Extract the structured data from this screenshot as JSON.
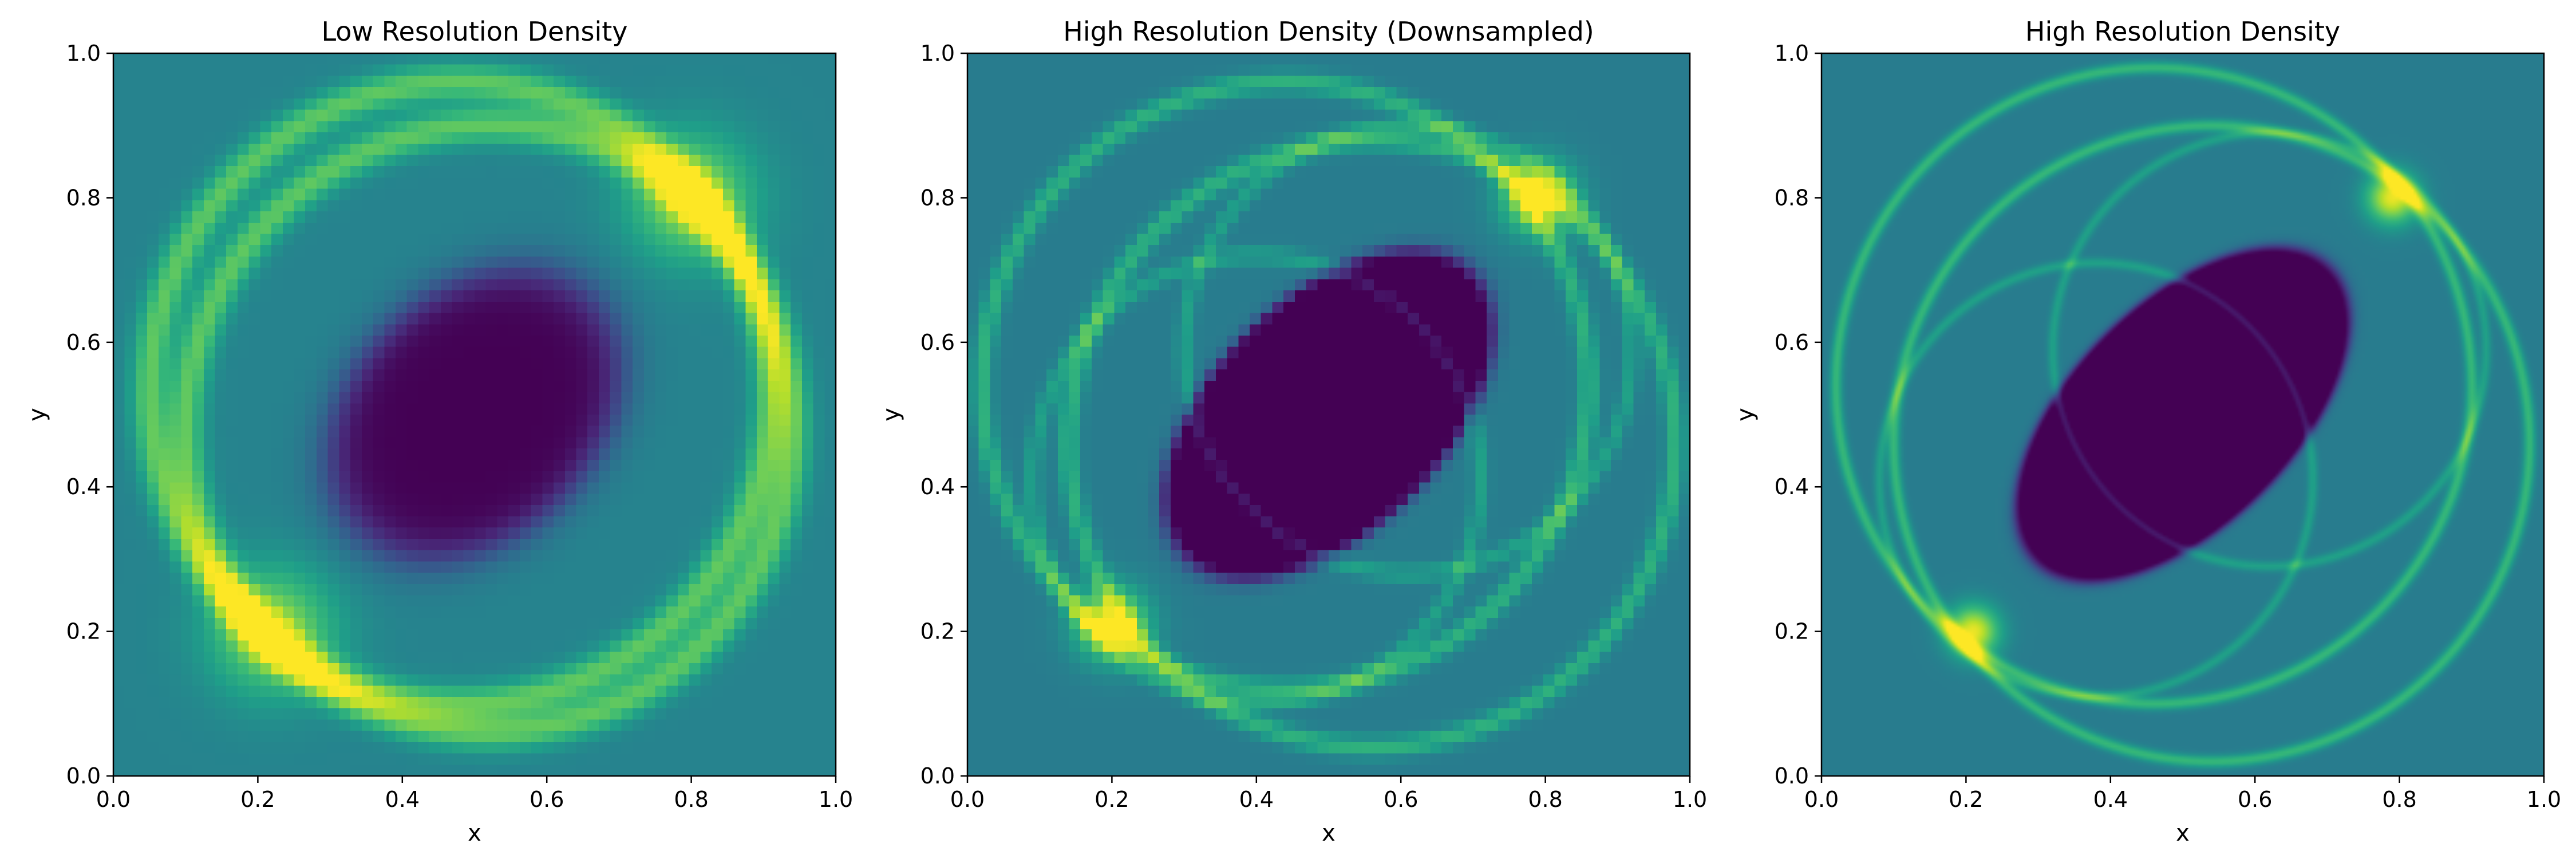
{
  "chart_data": [
    {
      "type": "heatmap",
      "title": "Low Resolution Density",
      "xlabel": "x",
      "ylabel": "y",
      "xlim": [
        0.0,
        1.0
      ],
      "ylim": [
        0.0,
        1.0
      ],
      "xticks": [
        "0.0",
        "0.2",
        "0.4",
        "0.6",
        "0.8",
        "1.0"
      ],
      "yticks": [
        "0.0",
        "0.2",
        "0.4",
        "0.6",
        "0.8",
        "1.0"
      ],
      "colormap": "viridis",
      "grid": false,
      "field": {
        "background": 0.45,
        "blocky": true,
        "rings": [
          {
            "cx": 0.48,
            "cy": 0.53,
            "r": 0.43,
            "width": 0.018,
            "amp": 0.3
          },
          {
            "cx": 0.52,
            "cy": 0.48,
            "r": 0.42,
            "width": 0.018,
            "amp": 0.3
          }
        ],
        "hotspots": [
          {
            "x": 0.8,
            "y": 0.8,
            "s": 0.06,
            "amp": 0.4
          },
          {
            "x": 0.22,
            "y": 0.2,
            "s": 0.06,
            "amp": 0.4
          }
        ],
        "core": {
          "cx": 0.5,
          "cy": 0.5,
          "a": 0.23,
          "b": 0.17,
          "angle": 45,
          "depth": 0.45,
          "edge": 0.09
        }
      }
    },
    {
      "type": "heatmap",
      "title": "High Resolution Density (Downsampled)",
      "xlabel": "x",
      "ylabel": "y",
      "xlim": [
        0.0,
        1.0
      ],
      "ylim": [
        0.0,
        1.0
      ],
      "xticks": [
        "0.0",
        "0.2",
        "0.4",
        "0.6",
        "0.8",
        "1.0"
      ],
      "yticks": [
        "0.0",
        "0.2",
        "0.4",
        "0.6",
        "0.8",
        "1.0"
      ],
      "colormap": "viridis",
      "grid": false,
      "field": {
        "background": 0.42,
        "blocky": true,
        "rings": [
          {
            "cx": 0.44,
            "cy": 0.54,
            "r": 0.42,
            "width": 0.01,
            "amp": 0.22
          },
          {
            "cx": 0.56,
            "cy": 0.46,
            "r": 0.42,
            "width": 0.01,
            "amp": 0.22
          },
          {
            "cx": 0.61,
            "cy": 0.59,
            "r": 0.31,
            "width": 0.008,
            "amp": 0.15
          },
          {
            "cx": 0.4,
            "cy": 0.41,
            "r": 0.31,
            "width": 0.008,
            "amp": 0.15
          }
        ],
        "hotspots": [
          {
            "x": 0.79,
            "y": 0.8,
            "s": 0.035,
            "amp": 0.5
          },
          {
            "x": 0.2,
            "y": 0.21,
            "s": 0.035,
            "amp": 0.5
          }
        ],
        "core": {
          "cx": 0.5,
          "cy": 0.5,
          "a": 0.28,
          "b": 0.16,
          "angle": 45,
          "depth": 0.5,
          "edge": 0.03
        }
      }
    },
    {
      "type": "heatmap",
      "title": "High Resolution Density",
      "xlabel": "x",
      "ylabel": "y",
      "xlim": [
        0.0,
        1.0
      ],
      "ylim": [
        0.0,
        1.0
      ],
      "xticks": [
        "0.0",
        "0.2",
        "0.4",
        "0.6",
        "0.8",
        "1.0"
      ],
      "yticks": [
        "0.0",
        "0.2",
        "0.4",
        "0.6",
        "0.8",
        "1.0"
      ],
      "colormap": "viridis",
      "grid": false,
      "field": {
        "background": 0.42,
        "blocky": false,
        "rings": [
          {
            "cx": 0.46,
            "cy": 0.54,
            "r": 0.44,
            "width": 0.006,
            "amp": 0.25
          },
          {
            "cx": 0.54,
            "cy": 0.46,
            "r": 0.44,
            "width": 0.006,
            "amp": 0.25
          },
          {
            "cx": 0.62,
            "cy": 0.59,
            "r": 0.3,
            "width": 0.005,
            "amp": 0.15
          },
          {
            "cx": 0.38,
            "cy": 0.41,
            "r": 0.3,
            "width": 0.005,
            "amp": 0.15
          }
        ],
        "hotspots": [
          {
            "x": 0.79,
            "y": 0.8,
            "s": 0.025,
            "amp": 0.55
          },
          {
            "x": 0.21,
            "y": 0.2,
            "s": 0.025,
            "amp": 0.55
          }
        ],
        "core": {
          "cx": 0.5,
          "cy": 0.5,
          "a": 0.29,
          "b": 0.155,
          "angle": 45,
          "depth": 0.5,
          "edge": 0.02
        }
      }
    }
  ]
}
